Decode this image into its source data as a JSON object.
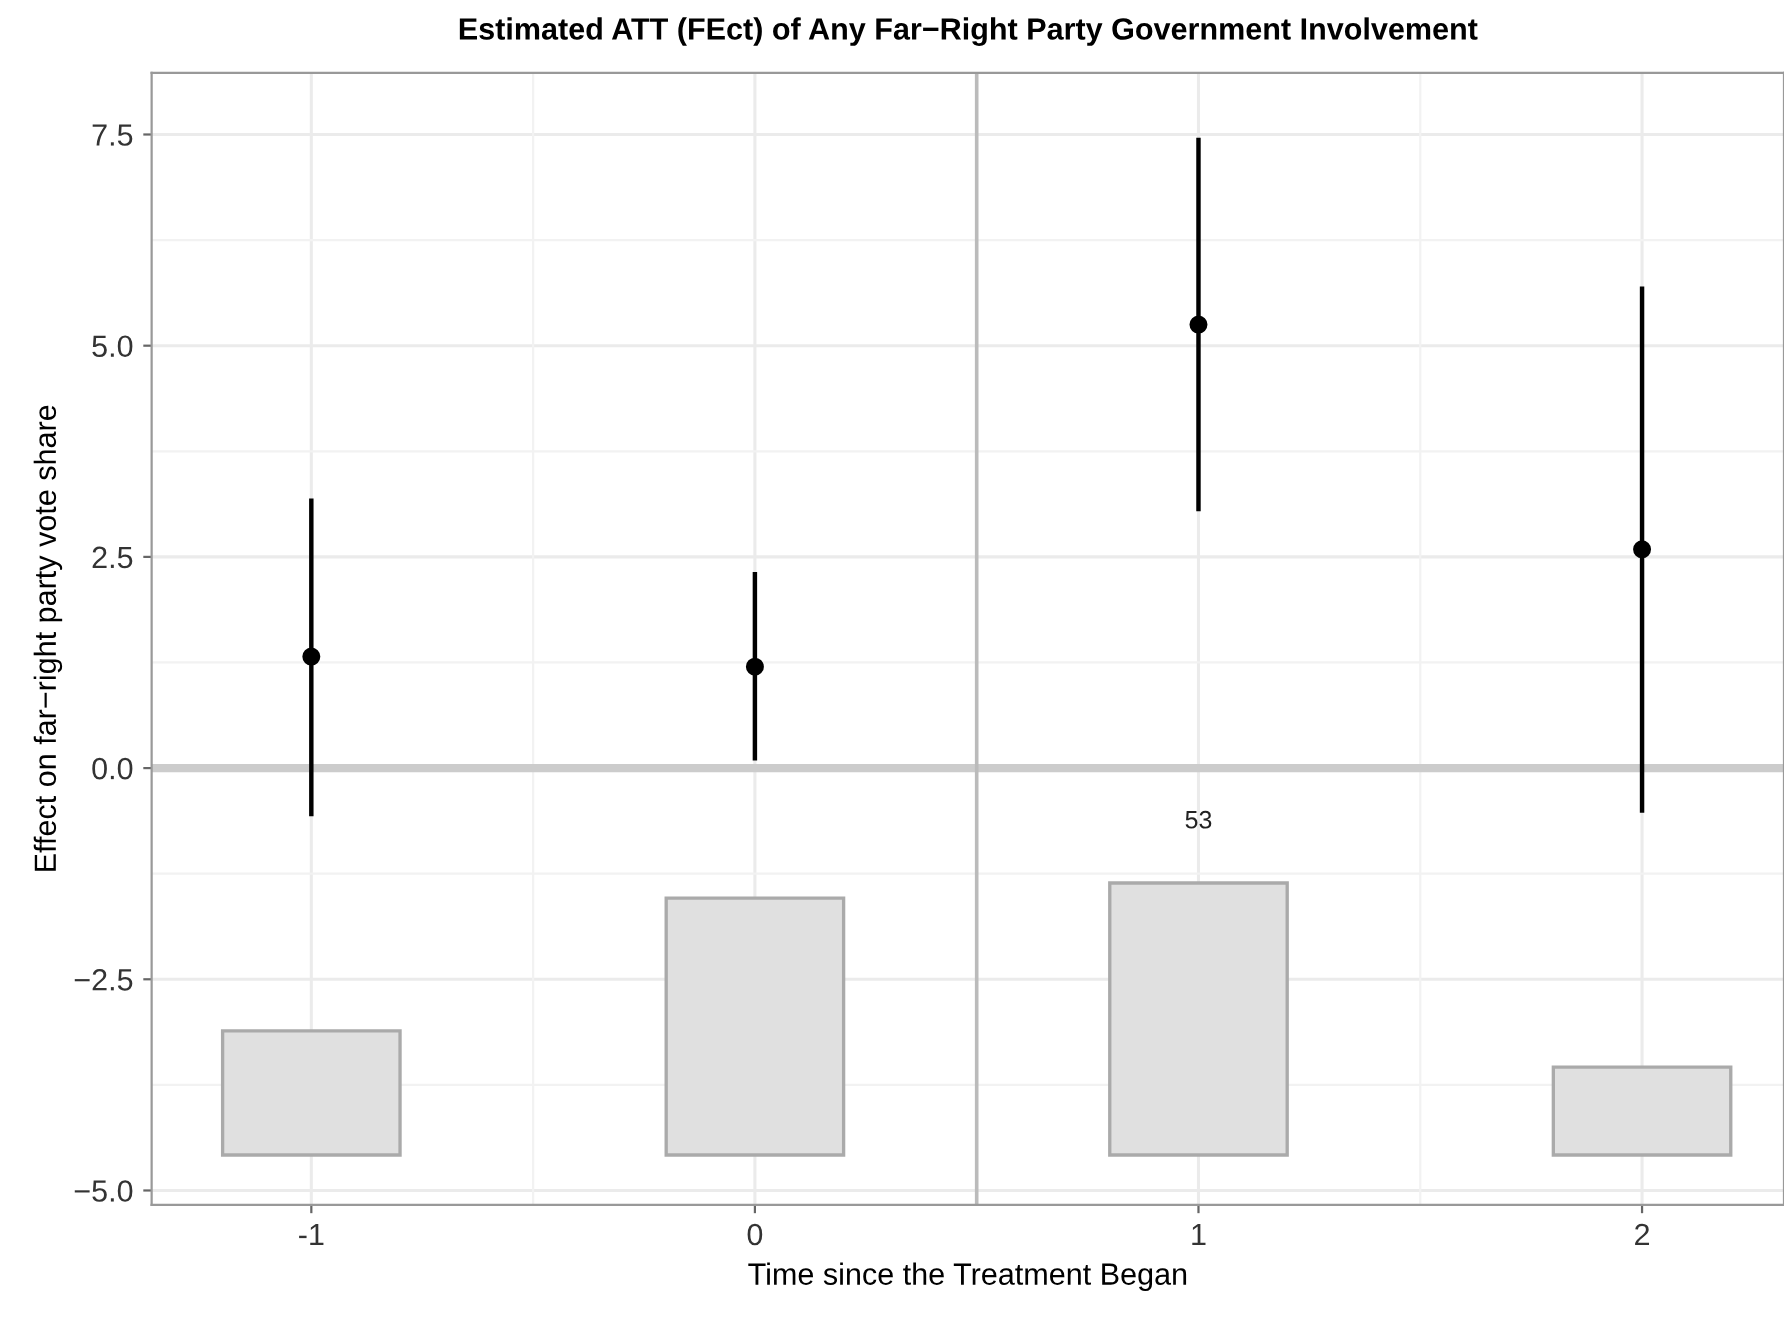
{
  "chart_data": {
    "type": "scatter",
    "title": "Estimated ATT (FEct) of Any Far−Right Party Government Involvement",
    "xlabel": "Time since the Treatment Began",
    "ylabel": "Effect on far−right party vote share",
    "x": [
      -1,
      0,
      1,
      2
    ],
    "series": [
      {
        "type": "bar",
        "color": "#e0e0e0",
        "base": [
          -4.58,
          -4.58,
          -4.58,
          -4.58
        ],
        "values": [
          1.47,
          3.04,
          3.22,
          1.04
        ]
      },
      {
        "color": "#000000",
        "values": [
          1.32,
          1.2,
          5.25,
          2.59
        ],
        "errors": [
          [
            -0.57,
            3.19
          ],
          [
            0.09,
            2.32
          ],
          [
            3.04,
            7.46
          ],
          [
            -0.53,
            5.7
          ]
        ]
      }
    ],
    "annotations": [
      "53"
    ],
    "ref_lines": [
      {
        "axis": "y",
        "value": 0,
        "color": "#cccccc"
      },
      {
        "axis": "x",
        "value": 0.5,
        "color": "#bbbbbb"
      }
    ],
    "xlim": [
      -1.36,
      2.32
    ],
    "ylim": [
      -5.17,
      8.23
    ],
    "xticks": [
      -1,
      0,
      1,
      2
    ],
    "yticks": [
      {
        "value": -5,
        "label": "−5.0"
      },
      {
        "value": -2.5,
        "label": "−2.5"
      },
      {
        "value": 0,
        "label": "0.0"
      },
      {
        "value": 2.5,
        "label": "2.5"
      },
      {
        "value": 5,
        "label": "5.0"
      },
      {
        "value": 7.5,
        "label": "7.5"
      }
    ],
    "grid": true,
    "marker": "circle"
  }
}
